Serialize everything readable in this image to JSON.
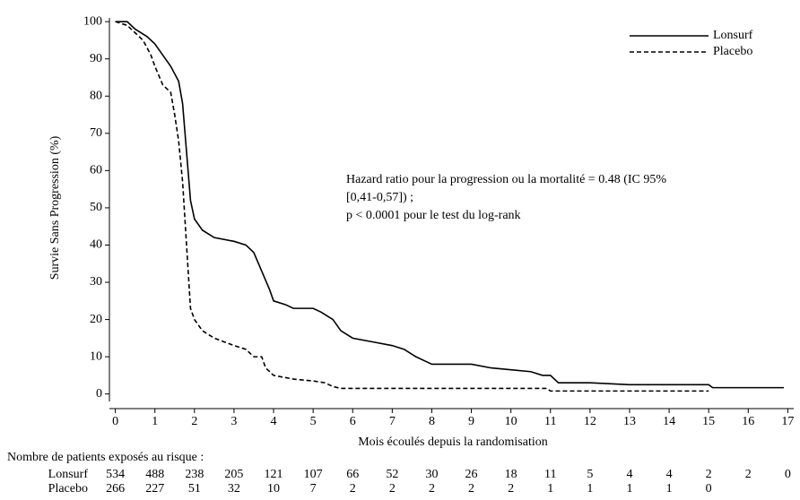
{
  "chart_data": {
    "type": "line",
    "x_label": "Mois écoulés depuis la randomisation",
    "y_label": "Survie Sans Progression  (%)",
    "xlim": [
      -0.15,
      17.15
    ],
    "ylim": [
      -2,
      101
    ],
    "xticks": [
      0,
      1,
      2,
      3,
      4,
      5,
      6,
      7,
      8,
      9,
      10,
      11,
      12,
      13,
      14,
      15,
      16,
      17
    ],
    "yticks": [
      0,
      10,
      20,
      30,
      40,
      50,
      60,
      70,
      80,
      90,
      100
    ],
    "grid": false,
    "legend": "top-right",
    "annotation": [
      "Hazard ratio pour la progression ou la mortalité = 0.48 (IC 95%",
      "[0,41-0,57]) ;",
      "p < 0.0001 pour le test du log-rank"
    ],
    "series": [
      {
        "name": "Lonsurf",
        "color": "#000000",
        "style": "solid",
        "x": [
          0,
          0.3,
          0.5,
          0.8,
          1,
          1.2,
          1.4,
          1.6,
          1.7,
          1.8,
          1.9,
          2,
          2.2,
          2.5,
          3,
          3.3,
          3.5,
          3.7,
          3.9,
          4,
          4.3,
          4.5,
          5,
          5.2,
          5.5,
          5.7,
          6,
          6.5,
          7,
          7.3,
          7.6,
          7.8,
          8,
          9,
          9.5,
          10,
          10.5,
          10.8,
          11,
          11.2,
          12,
          13,
          15,
          15.1,
          16.9
        ],
        "values": [
          100,
          100,
          98,
          96,
          94,
          91,
          88,
          84,
          78,
          65,
          52,
          47,
          44,
          42,
          41,
          40,
          38,
          33,
          28,
          25,
          24,
          23,
          23,
          22,
          20,
          17,
          15,
          14,
          13,
          12,
          10,
          9,
          8,
          8,
          7,
          6.5,
          6,
          5,
          5,
          3,
          3,
          2.5,
          2.5,
          1.7,
          1.7
        ]
      },
      {
        "name": "Placebo",
        "color": "#000000",
        "style": "dashed",
        "x": [
          0,
          0.3,
          0.5,
          0.7,
          0.9,
          1,
          1.2,
          1.4,
          1.5,
          1.6,
          1.7,
          1.8,
          1.9,
          2,
          2.2,
          2.5,
          3,
          3.3,
          3.5,
          3.7,
          3.8,
          4,
          4.5,
          5,
          5.3,
          5.5,
          5.7,
          10.9,
          11,
          15
        ],
        "values": [
          100,
          99,
          97,
          95,
          91,
          88,
          83,
          81,
          75,
          68,
          57,
          40,
          23,
          20,
          17,
          15,
          13,
          12,
          10,
          10,
          7,
          5,
          4,
          3.5,
          3,
          2,
          1.5,
          1.5,
          0.8,
          0.8
        ]
      }
    ],
    "risk_table": {
      "title": "Nombre de patients exposés au risque :",
      "rows": [
        {
          "label": "Lonsurf",
          "values": [
            534,
            488,
            238,
            205,
            121,
            107,
            66,
            52,
            30,
            26,
            18,
            11,
            5,
            4,
            4,
            2,
            2,
            0
          ]
        },
        {
          "label": "Placebo",
          "values": [
            266,
            227,
            51,
            32,
            10,
            7,
            2,
            2,
            2,
            2,
            2,
            1,
            1,
            1,
            1,
            0
          ]
        }
      ]
    }
  }
}
